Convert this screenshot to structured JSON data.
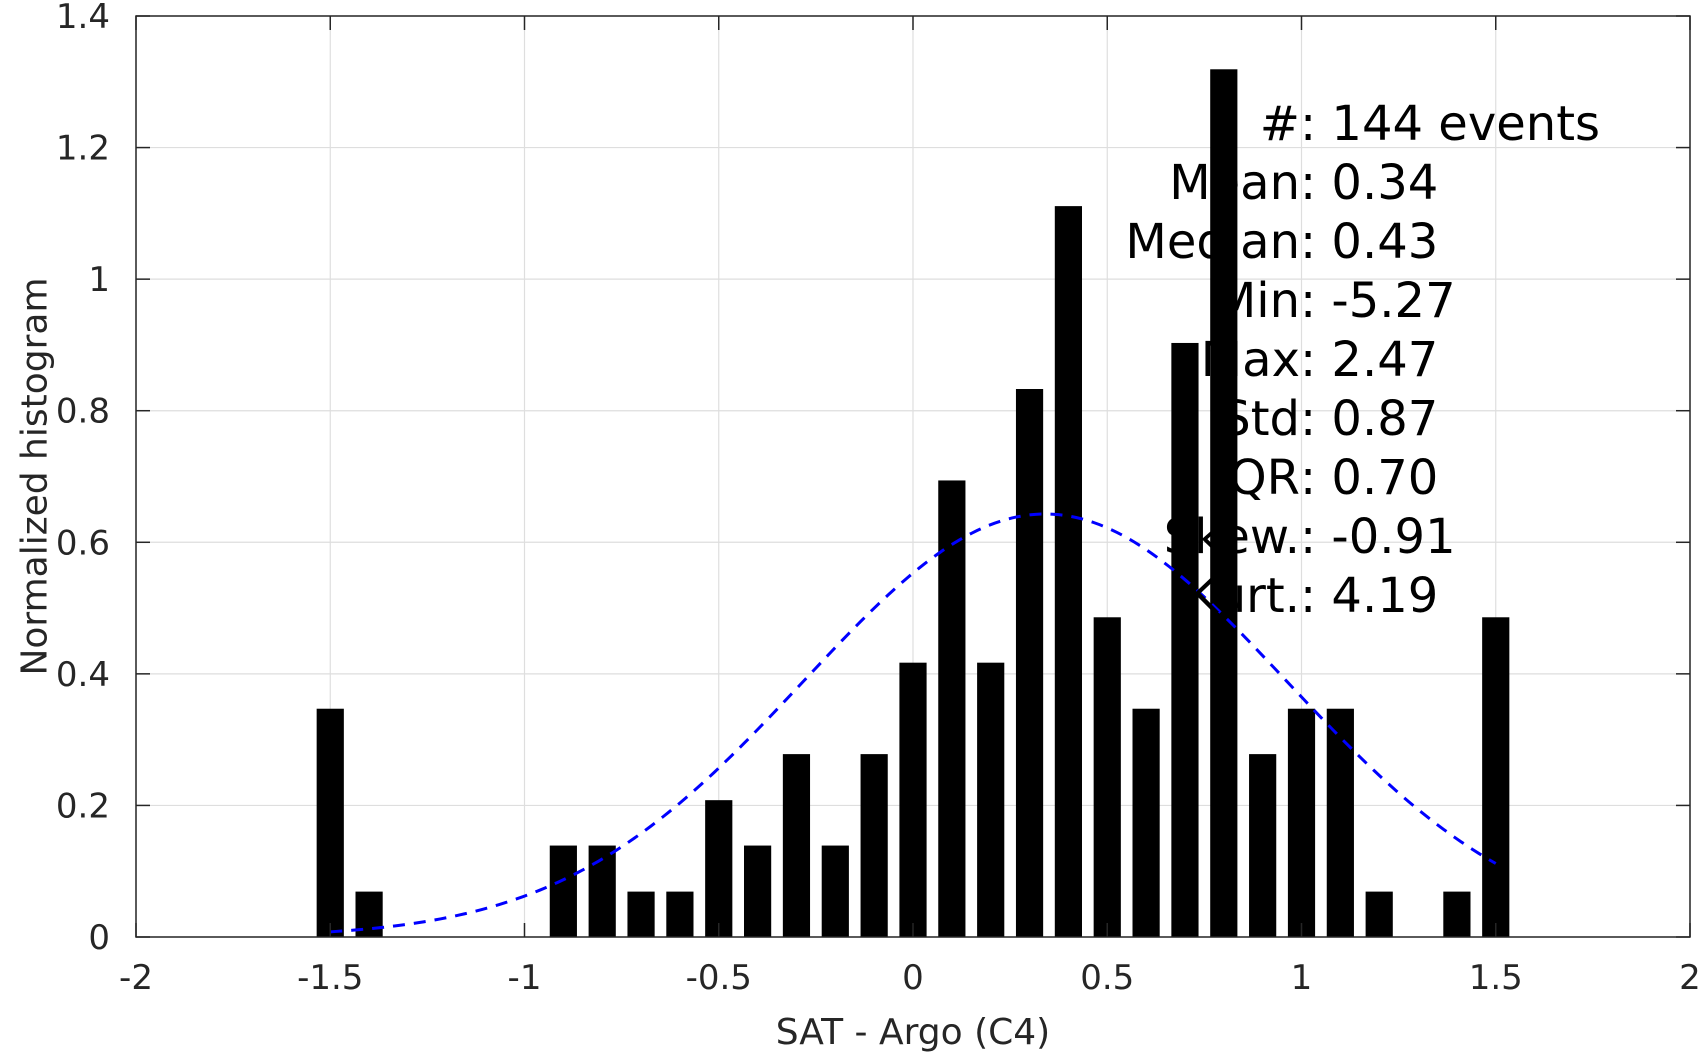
{
  "chart_data": {
    "type": "bar",
    "xlabel": "SAT - Argo (C4)",
    "ylabel": "Normalized histogram",
    "xlim": [
      -2,
      2
    ],
    "ylim": [
      0,
      1.4
    ],
    "xticks": [
      "-2",
      "-1.5",
      "-1",
      "-0.5",
      "0",
      "0.5",
      "1",
      "1.5",
      "2"
    ],
    "yticks": [
      "0",
      "0.2",
      "0.4",
      "0.6",
      "0.8",
      "1",
      "1.2",
      "1.4"
    ],
    "grid": true,
    "bar_width": 0.07,
    "bar_color": "#000000",
    "x": [
      -1.5,
      -1.4,
      -0.9,
      -0.8,
      -0.7,
      -0.6,
      -0.5,
      -0.4,
      -0.3,
      -0.2,
      -0.1,
      0.0,
      0.1,
      0.2,
      0.3,
      0.4,
      0.5,
      0.6,
      0.7,
      0.8,
      0.9,
      1.0,
      1.1,
      1.2,
      1.4,
      1.5
    ],
    "values": [
      0.347,
      0.069,
      0.139,
      0.139,
      0.069,
      0.069,
      0.208,
      0.139,
      0.278,
      0.139,
      0.278,
      0.417,
      0.694,
      0.417,
      0.833,
      1.111,
      0.486,
      0.347,
      0.903,
      1.319,
      0.278,
      0.347,
      0.347,
      0.069,
      0.069,
      0.486
    ],
    "fit_curve": {
      "style": "dashed",
      "color": "#0000ff",
      "x_range": [
        -1.5,
        1.5
      ],
      "mean": 0.34,
      "std": 0.62,
      "peak": 0.643
    },
    "stats": [
      {
        "label": "#",
        "sep": " : ",
        "value": "144 events"
      },
      {
        "label": "Mean",
        "sep": " : ",
        "value": "0.34"
      },
      {
        "label": "Median",
        "sep": " : ",
        "value": "0.43"
      },
      {
        "label": "Min",
        "sep": " : ",
        "value": "-5.27"
      },
      {
        "label": "Max",
        "sep": " : ",
        "value": "2.47"
      },
      {
        "label": "Std",
        "sep": " : ",
        "value": "0.87"
      },
      {
        "label": "IQR",
        "sep": " : ",
        "value": "0.70"
      },
      {
        "label": "Skew.",
        "sep": " : ",
        "value": "-0.91"
      },
      {
        "label": "Kurt.",
        "sep": " : ",
        "value": "4.19"
      }
    ]
  }
}
